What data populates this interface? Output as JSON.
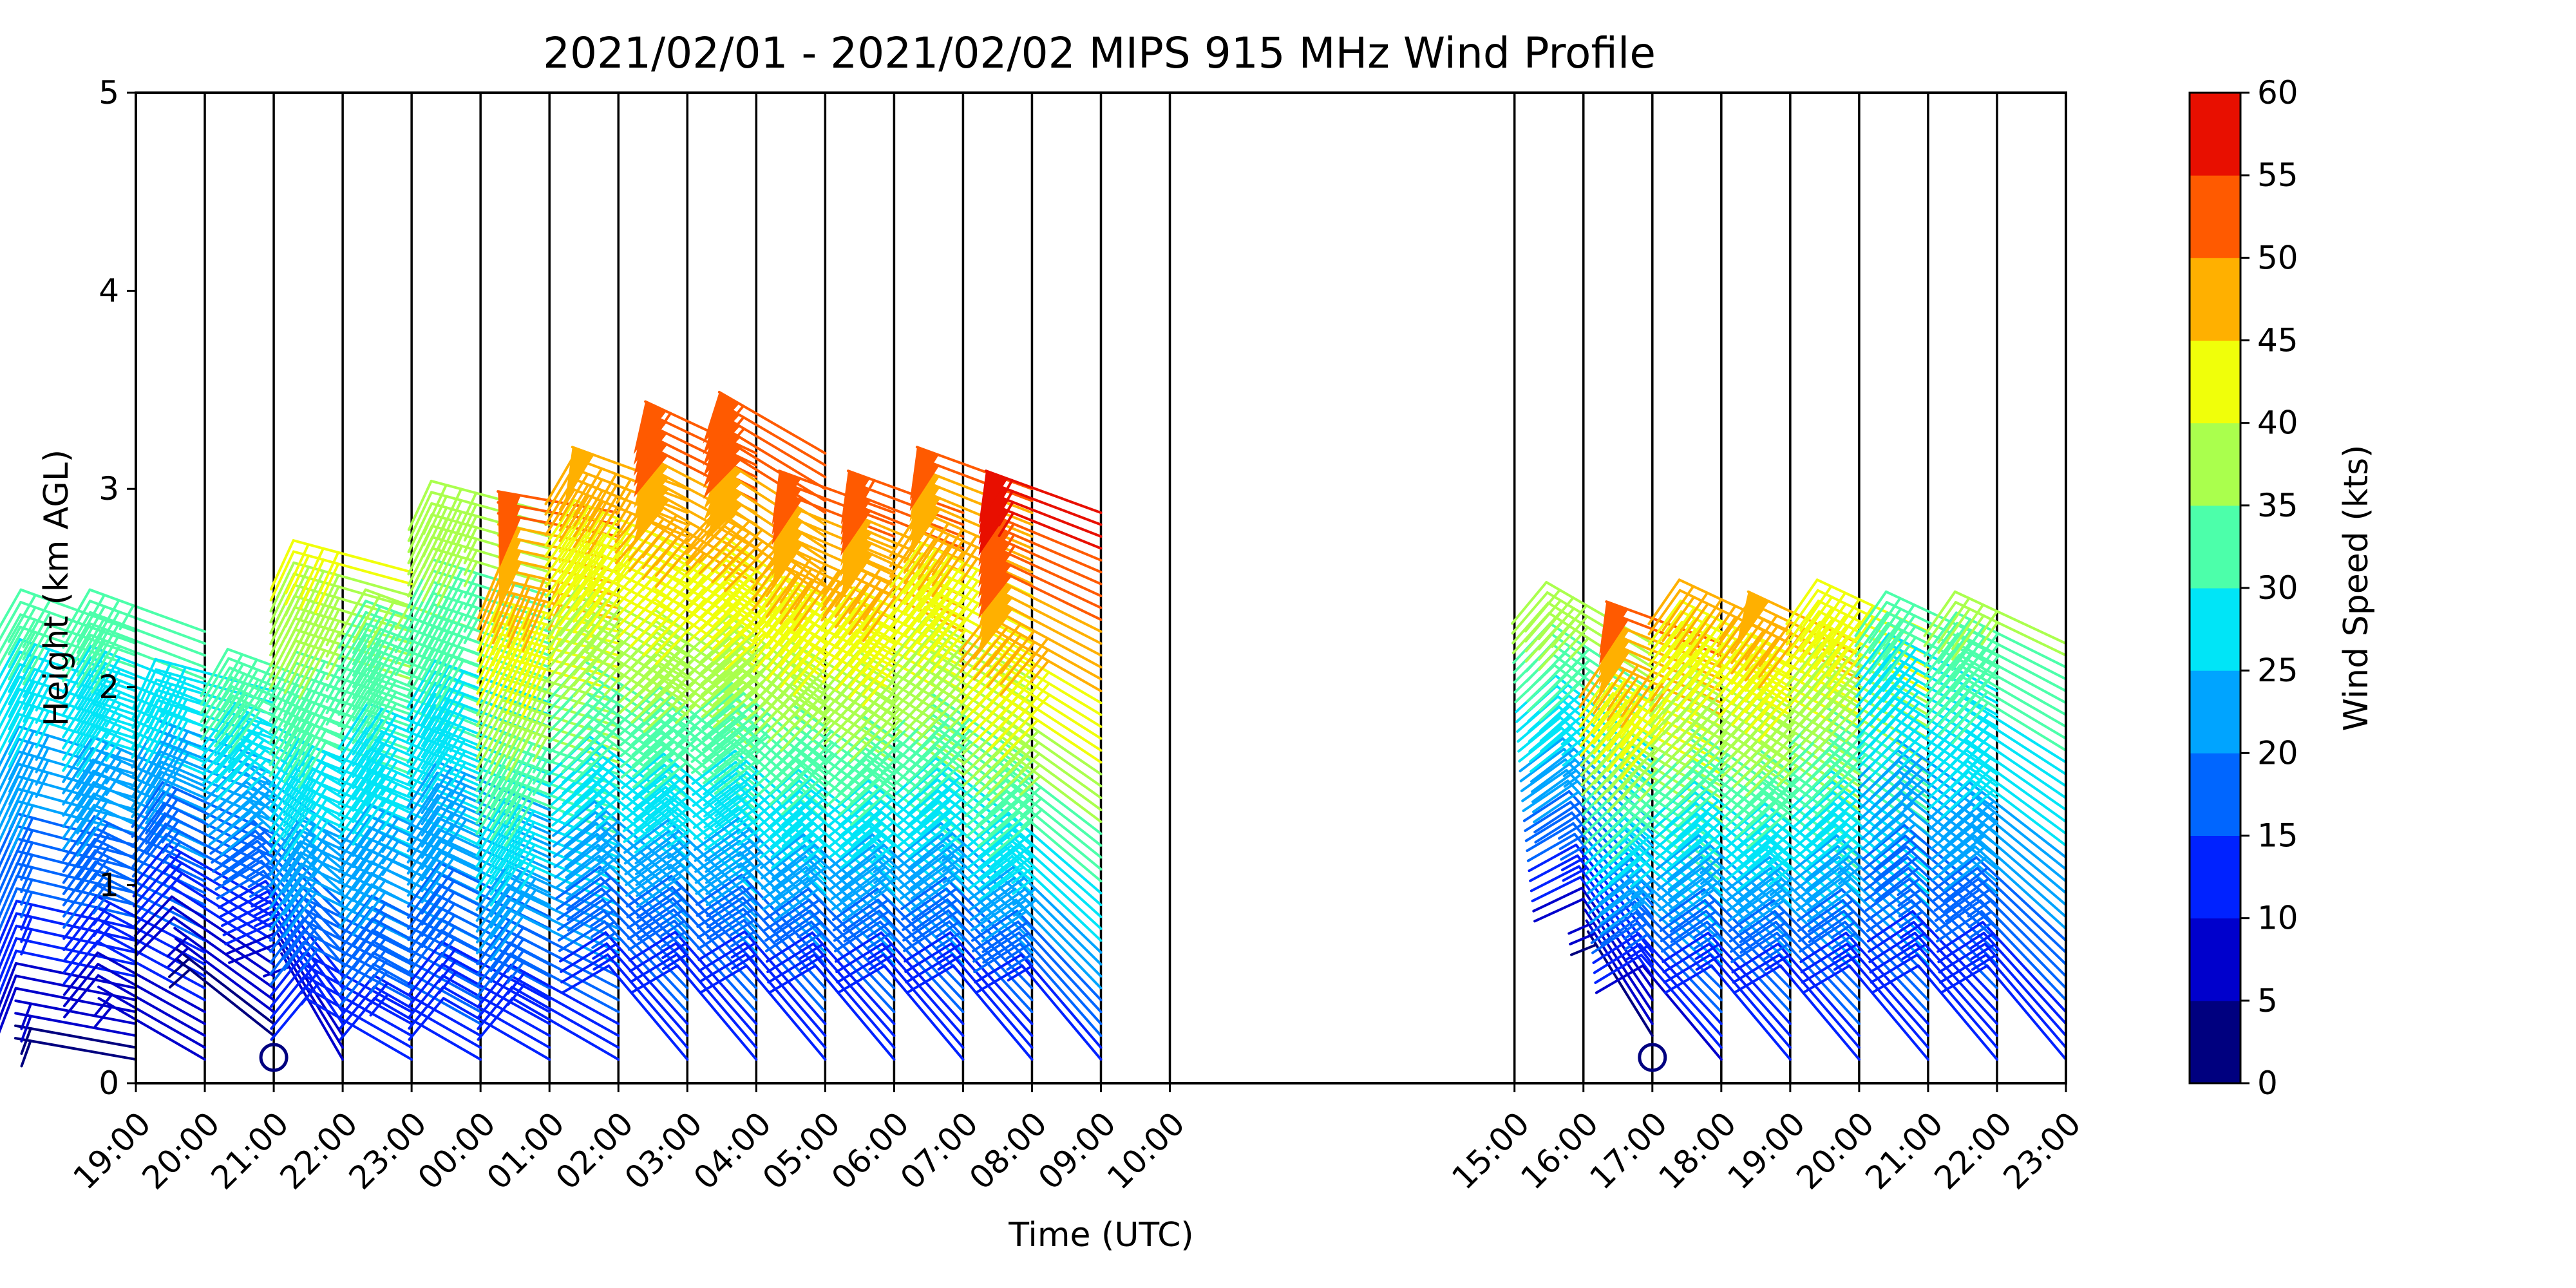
{
  "chart_data": {
    "type": "wind_barb_profile",
    "title": "2021/02/01 - 2021/02/02 MIPS 915 MHz Wind Profile",
    "xlabel": "Time (UTC)",
    "ylabel": "Height (km AGL)",
    "ylim": [
      0,
      5
    ],
    "y_ticks": [
      "0",
      "1",
      "2",
      "3",
      "4",
      "5"
    ],
    "x_ticks": [
      "19:00",
      "20:00",
      "21:00",
      "22:00",
      "23:00",
      "00:00",
      "01:00",
      "02:00",
      "03:00",
      "04:00",
      "05:00",
      "06:00",
      "07:00",
      "08:00",
      "09:00",
      "10:00",
      "15:00",
      "16:00",
      "17:00",
      "18:00",
      "19:00",
      "20:00",
      "21:00",
      "22:00",
      "23:00"
    ],
    "x_tick_hours": [
      0,
      1,
      2,
      3,
      4,
      5,
      6,
      7,
      8,
      9,
      10,
      11,
      12,
      13,
      14,
      15,
      20,
      21,
      22,
      23,
      24,
      25,
      26,
      27,
      28
    ],
    "xlim_hours": [
      0,
      28
    ],
    "grid_x": true,
    "grid_y": false,
    "colorbar": {
      "label": "Wind Speed (kts)",
      "levels": [
        0,
        5,
        10,
        15,
        20,
        25,
        30,
        35,
        40,
        45,
        50,
        55,
        60
      ],
      "tick_labels": [
        "0",
        "5",
        "10",
        "15",
        "20",
        "25",
        "30",
        "35",
        "40",
        "45",
        "50",
        "55",
        "60"
      ],
      "colors": [
        "#00007f",
        "#0000cc",
        "#0022ff",
        "#0066ff",
        "#00a4ff",
        "#00e5f7",
        "#4cffaa",
        "#aaff4d",
        "#f0ff0a",
        "#ffb000",
        "#ff5a00",
        "#e80f00",
        "#7f0000"
      ]
    },
    "calm_markers": [
      {
        "hour": 2,
        "height_km": 0.13
      },
      {
        "hour": 22,
        "height_km": 0.13
      }
    ],
    "profiles": [
      {
        "hour": 0,
        "top_km": 2.3,
        "low_speed": 3,
        "high_speed": 32,
        "low_dir": 280,
        "high_dir": 290
      },
      {
        "hour": 1,
        "top_km": 2.3,
        "low_speed": 5,
        "high_speed": 33,
        "low_dir": 300,
        "high_dir": 290
      },
      {
        "hour": 2,
        "top_km": 2.0,
        "low_speed": 0,
        "high_speed": 29,
        "low_dir": 310,
        "high_dir": 285
      },
      {
        "hour": 3,
        "top_km": 2.0,
        "low_speed": 6,
        "high_speed": 34,
        "low_dir": 330,
        "high_dir": 290
      },
      {
        "hour": 4,
        "top_km": 2.6,
        "low_speed": 10,
        "high_speed": 41,
        "low_dir": 300,
        "high_dir": 285
      },
      {
        "hour": 5,
        "top_km": 2.3,
        "low_speed": 12,
        "high_speed": 35,
        "low_dir": 300,
        "high_dir": 290
      },
      {
        "hour": 6,
        "top_km": 2.9,
        "low_speed": 10,
        "high_speed": 38,
        "low_dir": 300,
        "high_dir": 285
      },
      {
        "hour": 7,
        "top_km": 2.9,
        "low_speed": 10,
        "high_speed": 52,
        "low_dir": 300,
        "high_dir": 280
      },
      {
        "hour": 8,
        "top_km": 3.0,
        "low_speed": 10,
        "high_speed": 48,
        "low_dir": 320,
        "high_dir": 290
      },
      {
        "hour": 9,
        "top_km": 3.2,
        "low_speed": 10,
        "high_speed": 53,
        "low_dir": 320,
        "high_dir": 295
      },
      {
        "hour": 10,
        "top_km": 3.2,
        "low_speed": 10,
        "high_speed": 54,
        "low_dir": 320,
        "high_dir": 300
      },
      {
        "hour": 11,
        "top_km": 2.9,
        "low_speed": 10,
        "high_speed": 52,
        "low_dir": 320,
        "high_dir": 290
      },
      {
        "hour": 12,
        "top_km": 2.9,
        "low_speed": 10,
        "high_speed": 53,
        "low_dir": 320,
        "high_dir": 290
      },
      {
        "hour": 13,
        "top_km": 3.0,
        "low_speed": 10,
        "high_speed": 51,
        "low_dir": 320,
        "high_dir": 290
      },
      {
        "hour": 14,
        "top_km": 2.9,
        "low_speed": 12,
        "high_speed": 58,
        "low_dir": 320,
        "high_dir": 290
      },
      {
        "hour": 22,
        "top_km": 2.2,
        "low_speed": 0,
        "high_speed": 38,
        "low_dir": 330,
        "high_dir": 300
      },
      {
        "hour": 23,
        "top_km": 2.2,
        "low_speed": 8,
        "high_speed": 52,
        "low_dir": 320,
        "high_dir": 290
      },
      {
        "hour": 24,
        "top_km": 2.3,
        "low_speed": 10,
        "high_speed": 46,
        "low_dir": 320,
        "high_dir": 295
      },
      {
        "hour": 25,
        "top_km": 2.2,
        "low_speed": 10,
        "high_speed": 48,
        "low_dir": 320,
        "high_dir": 295
      },
      {
        "hour": 26,
        "top_km": 2.3,
        "low_speed": 10,
        "high_speed": 44,
        "low_dir": 320,
        "high_dir": 295
      },
      {
        "hour": 27,
        "top_km": 2.2,
        "low_speed": 10,
        "high_speed": 32,
        "low_dir": 320,
        "high_dir": 295
      },
      {
        "hour": 28,
        "top_km": 2.2,
        "low_speed": 10,
        "high_speed": 36,
        "low_dir": 320,
        "high_dir": 295
      }
    ]
  }
}
